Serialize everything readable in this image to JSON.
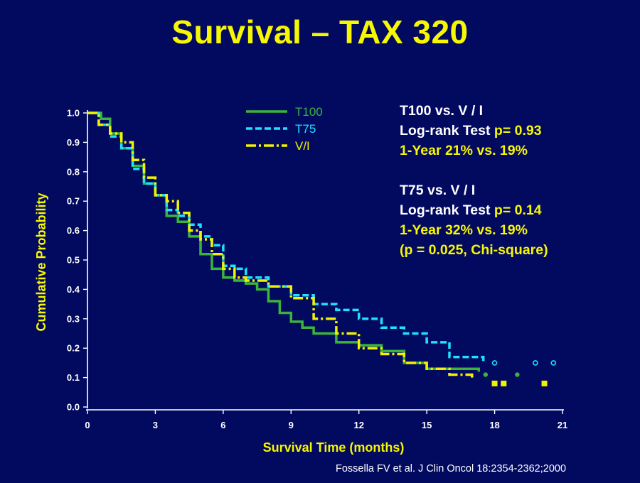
{
  "title": "Survival – TAX 320",
  "chart_data": {
    "type": "line",
    "step": true,
    "xlabel": "Survival Time (months)",
    "ylabel": "Cumulative  Probability",
    "xlim": [
      0,
      21
    ],
    "ylim": [
      0,
      1.0
    ],
    "x_ticks": [
      "0",
      "3",
      "6",
      "9",
      "12",
      "15",
      "18",
      "21"
    ],
    "y_ticks": [
      "0.0",
      "0.1",
      "0.2",
      "0.3",
      "0.4",
      "0.5",
      "0.6",
      "0.7",
      "0.8",
      "0.9",
      "1.0"
    ],
    "grid": false,
    "legend_position": "top-center",
    "series": [
      {
        "name": "T100",
        "color": "#3cb43c",
        "dash": "solid",
        "x": [
          0,
          0.6,
          1.0,
          1.5,
          2.0,
          2.5,
          3.0,
          3.5,
          4.0,
          4.5,
          5.0,
          5.5,
          6.0,
          6.5,
          7.0,
          7.5,
          8.0,
          8.5,
          9.0,
          9.5,
          10.0,
          11.0,
          12.0,
          13.0,
          14.0,
          15.0,
          16.0,
          17.3
        ],
        "y": [
          1.0,
          0.98,
          0.93,
          0.88,
          0.82,
          0.76,
          0.72,
          0.65,
          0.63,
          0.58,
          0.52,
          0.47,
          0.44,
          0.43,
          0.42,
          0.4,
          0.36,
          0.32,
          0.29,
          0.27,
          0.25,
          0.22,
          0.21,
          0.19,
          0.15,
          0.13,
          0.13,
          0.12
        ],
        "censored_x": [
          17.6,
          19.0
        ],
        "censored_y": [
          0.11,
          0.11
        ]
      },
      {
        "name": "T75",
        "color": "#1ee0ff",
        "dash": "dashed",
        "x": [
          0,
          0.5,
          1.0,
          1.5,
          2.0,
          2.5,
          3.0,
          3.5,
          4.0,
          4.5,
          5.0,
          5.5,
          6.0,
          6.5,
          7.0,
          8.0,
          9.0,
          10.0,
          11.0,
          12.0,
          13.0,
          14.0,
          15.0,
          16.0,
          16.5,
          17.5
        ],
        "y": [
          1.0,
          0.96,
          0.92,
          0.88,
          0.81,
          0.76,
          0.72,
          0.67,
          0.65,
          0.62,
          0.58,
          0.55,
          0.48,
          0.47,
          0.44,
          0.41,
          0.38,
          0.35,
          0.33,
          0.3,
          0.27,
          0.25,
          0.22,
          0.17,
          0.17,
          0.15
        ],
        "censored_x": [
          18.0,
          19.8,
          20.6
        ],
        "censored_y": [
          0.15,
          0.15,
          0.15
        ]
      },
      {
        "name": "V/I",
        "color": "#f2f200",
        "dash": "dashdot",
        "x": [
          0,
          0.5,
          1.0,
          1.5,
          2.0,
          2.5,
          3.0,
          3.5,
          4.0,
          4.5,
          5.0,
          5.5,
          6.0,
          6.5,
          7.0,
          8.0,
          9.0,
          10.0,
          11.0,
          12.0,
          13.0,
          14.0,
          15.0,
          16.0,
          17.0
        ],
        "y": [
          1.0,
          0.96,
          0.93,
          0.9,
          0.84,
          0.78,
          0.72,
          0.7,
          0.66,
          0.6,
          0.57,
          0.52,
          0.47,
          0.44,
          0.43,
          0.41,
          0.37,
          0.3,
          0.25,
          0.2,
          0.18,
          0.15,
          0.13,
          0.11,
          0.1
        ],
        "censored_x": [
          18.0,
          18.4,
          20.2
        ],
        "censored_y": [
          0.08,
          0.08,
          0.08
        ]
      }
    ]
  },
  "stats": {
    "block1": {
      "heading": "T100 vs. V / I",
      "test_label": "Log-rank Test",
      "p_value": "p= 0.93",
      "one_year": "1-Year 21% vs. 19%"
    },
    "block2": {
      "heading": "T75 vs. V / I",
      "test_label": "Log-rank Test",
      "p_value": "p= 0.14",
      "one_year": "1-Year 32% vs. 19%",
      "chi_square": "(p = 0.025, Chi-square)"
    }
  },
  "citation": "Fossella FV et al. J Clin Oncol 18:2354-2362;2000",
  "colors": {
    "background": "#020a60",
    "title": "#f7f700",
    "axis": "#ffffff"
  }
}
